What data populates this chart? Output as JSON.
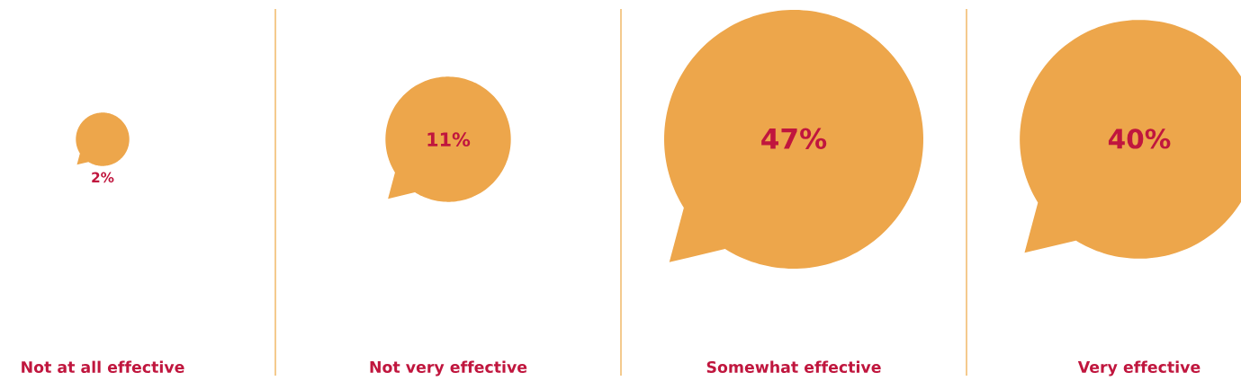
{
  "chart_data": {
    "type": "other",
    "categories": [
      "Not at all effective",
      "Not very effective",
      "Somewhat effective",
      "Very effective"
    ],
    "values": [
      2,
      11,
      47,
      40
    ],
    "value_labels": [
      "2%",
      "11%",
      "47%",
      "40%"
    ],
    "color": "#eda64b"
  }
}
